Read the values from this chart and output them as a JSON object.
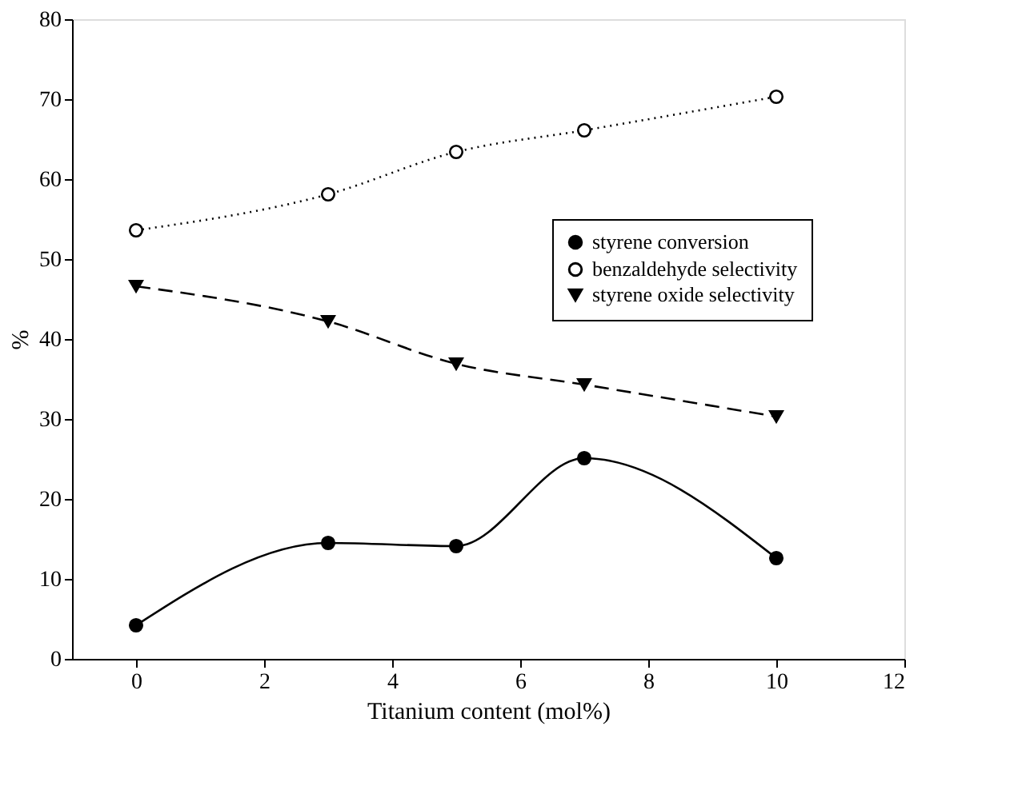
{
  "chart_data": {
    "type": "line",
    "xlabel": "Titanium content (mol%)",
    "ylabel": "%",
    "x": [
      0,
      3,
      5,
      7,
      10
    ],
    "series": [
      {
        "name": "styrene conversion",
        "color": "#000000",
        "marker": "circle",
        "line_style": "solid",
        "values": [
          4.2,
          14.5,
          14.1,
          25.1,
          12.6
        ]
      },
      {
        "name": "benzaldehyde selectivity",
        "color": "#000000",
        "marker": "circle_open",
        "line_style": "dotted",
        "values": [
          53.6,
          58.1,
          63.4,
          66.1,
          70.3
        ]
      },
      {
        "name": "styrene oxide selectivity",
        "color": "#000000",
        "marker": "triangle",
        "line_style": "dashed",
        "values": [
          46.6,
          42.2,
          36.9,
          34.3,
          30.3
        ]
      }
    ],
    "xlim": [
      -1,
      12
    ],
    "xticks": [
      0,
      2,
      4,
      6,
      8,
      10,
      12
    ],
    "ylim": [
      0,
      80
    ],
    "yticks": [
      0,
      10,
      20,
      30,
      40,
      50,
      60,
      70,
      80
    ],
    "grid": false,
    "legend": "right"
  }
}
